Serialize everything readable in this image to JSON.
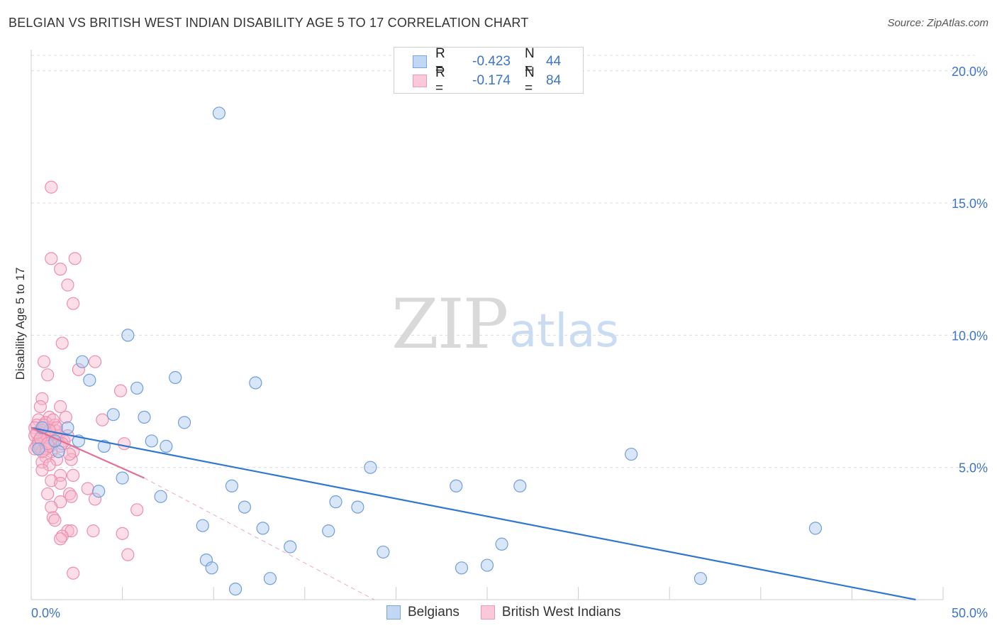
{
  "header": {
    "title": "BELGIAN VS BRITISH WEST INDIAN DISABILITY AGE 5 TO 17 CORRELATION CHART",
    "source": "Source: ZipAtlas.com"
  },
  "watermark": {
    "zip": "ZIP",
    "atlas": "atlas"
  },
  "legend": {
    "rows": [
      {
        "r_label": "R =",
        "r_value": "-0.423",
        "n_label": "N =",
        "n_value": "44"
      },
      {
        "r_label": "R =",
        "r_value": "-0.174",
        "n_label": "N =",
        "n_value": "84"
      }
    ],
    "bottom": [
      "Belgians",
      "British West Indians"
    ]
  },
  "colors": {
    "blue_fill": "#a9c8ee",
    "blue_stroke": "#6f9fdc",
    "blue_line": "#2f77d0",
    "pink_fill": "#f6b6cb",
    "pink_stroke": "#ec8fae",
    "pink_line": "#e0709a",
    "grid": "#dcdcdc",
    "axis_text": "#3d74c8"
  },
  "chart_data": {
    "type": "scatter",
    "title": "BELGIAN VS BRITISH WEST INDIAN DISABILITY AGE 5 TO 17 CORRELATION CHART",
    "xlabel": "",
    "ylabel": "Disability Age 5 to 17",
    "xlim": [
      0,
      50
    ],
    "ylim": [
      0,
      20.8
    ],
    "x_tick_labels": [
      "0.0%",
      "50.0%"
    ],
    "y_ticks": [
      5,
      10,
      15,
      20
    ],
    "y_tick_labels": [
      "5.0%",
      "10.0%",
      "15.0%",
      "20.0%"
    ],
    "series": [
      {
        "name": "Belgians",
        "r": -0.423,
        "n": 44,
        "trend": {
          "x": [
            0.0,
            48.5
          ],
          "y": [
            6.5,
            0.0
          ]
        },
        "points": [
          [
            10.3,
            18.4
          ],
          [
            5.3,
            10.0
          ],
          [
            2.8,
            9.0
          ],
          [
            3.2,
            8.3
          ],
          [
            5.8,
            8.0
          ],
          [
            7.9,
            8.4
          ],
          [
            12.3,
            8.2
          ],
          [
            4.5,
            7.0
          ],
          [
            6.2,
            6.9
          ],
          [
            8.4,
            6.7
          ],
          [
            2.0,
            6.5
          ],
          [
            2.6,
            6.0
          ],
          [
            4.0,
            5.8
          ],
          [
            6.6,
            6.0
          ],
          [
            7.4,
            5.8
          ],
          [
            0.4,
            5.7
          ],
          [
            1.5,
            5.6
          ],
          [
            0.6,
            6.5
          ],
          [
            5.0,
            4.6
          ],
          [
            3.7,
            4.1
          ],
          [
            7.1,
            3.9
          ],
          [
            11.0,
            4.3
          ],
          [
            9.4,
            2.8
          ],
          [
            11.7,
            3.5
          ],
          [
            12.7,
            2.7
          ],
          [
            14.2,
            2.0
          ],
          [
            9.6,
            1.5
          ],
          [
            9.9,
            1.2
          ],
          [
            11.2,
            0.4
          ],
          [
            13.1,
            0.8
          ],
          [
            16.7,
            3.7
          ],
          [
            17.9,
            3.5
          ],
          [
            18.6,
            5.0
          ],
          [
            16.3,
            2.6
          ],
          [
            19.3,
            1.8
          ],
          [
            23.3,
            4.3
          ],
          [
            23.6,
            1.2
          ],
          [
            25.0,
            1.3
          ],
          [
            25.8,
            2.1
          ],
          [
            26.8,
            4.3
          ],
          [
            32.9,
            5.5
          ],
          [
            36.7,
            0.8
          ],
          [
            43.0,
            2.7
          ],
          [
            1.3,
            6.0
          ]
        ]
      },
      {
        "name": "British West Indians",
        "r": -0.174,
        "n": 84,
        "trend": {
          "x": [
            0.0,
            6.2
          ],
          "y": [
            6.5,
            4.6
          ]
        },
        "trend_dashed": {
          "x": [
            6.2,
            18.8
          ],
          "y": [
            4.6,
            0.0
          ]
        },
        "points": [
          [
            1.1,
            15.6
          ],
          [
            1.1,
            12.9
          ],
          [
            2.4,
            12.9
          ],
          [
            1.6,
            12.5
          ],
          [
            2.0,
            11.9
          ],
          [
            2.3,
            11.2
          ],
          [
            1.7,
            9.7
          ],
          [
            0.7,
            9.0
          ],
          [
            3.5,
            9.0
          ],
          [
            0.9,
            8.5
          ],
          [
            2.6,
            8.7
          ],
          [
            4.9,
            7.9
          ],
          [
            0.6,
            7.6
          ],
          [
            1.6,
            7.3
          ],
          [
            0.5,
            7.3
          ],
          [
            1.0,
            6.9
          ],
          [
            1.9,
            6.9
          ],
          [
            0.4,
            6.8
          ],
          [
            3.9,
            6.8
          ],
          [
            0.8,
            6.7
          ],
          [
            0.3,
            6.6
          ],
          [
            1.3,
            6.6
          ],
          [
            0.2,
            6.5
          ],
          [
            0.6,
            6.4
          ],
          [
            1.0,
            6.3
          ],
          [
            1.5,
            6.2
          ],
          [
            0.2,
            6.2
          ],
          [
            0.7,
            6.1
          ],
          [
            1.2,
            6.0
          ],
          [
            0.4,
            6.0
          ],
          [
            0.9,
            5.9
          ],
          [
            0.3,
            5.8
          ],
          [
            1.6,
            5.8
          ],
          [
            0.5,
            5.7
          ],
          [
            1.1,
            5.6
          ],
          [
            2.3,
            5.6
          ],
          [
            0.8,
            5.4
          ],
          [
            1.4,
            5.3
          ],
          [
            2.2,
            5.3
          ],
          [
            0.6,
            5.2
          ],
          [
            1.0,
            5.1
          ],
          [
            5.1,
            5.9
          ],
          [
            0.6,
            4.9
          ],
          [
            1.6,
            4.7
          ],
          [
            2.3,
            4.7
          ],
          [
            1.1,
            4.5
          ],
          [
            1.6,
            4.4
          ],
          [
            3.1,
            4.2
          ],
          [
            0.9,
            4.0
          ],
          [
            2.1,
            4.0
          ],
          [
            2.2,
            3.9
          ],
          [
            3.5,
            3.8
          ],
          [
            1.6,
            3.7
          ],
          [
            1.1,
            3.5
          ],
          [
            5.8,
            3.4
          ],
          [
            1.2,
            3.1
          ],
          [
            1.3,
            3.0
          ],
          [
            2.0,
            2.6
          ],
          [
            2.2,
            2.6
          ],
          [
            3.4,
            2.6
          ],
          [
            5.0,
            2.5
          ],
          [
            1.7,
            2.4
          ],
          [
            1.6,
            2.3
          ],
          [
            5.3,
            1.7
          ],
          [
            2.3,
            1.0
          ],
          [
            0.9,
            6.1
          ],
          [
            1.3,
            6.4
          ],
          [
            0.4,
            5.9
          ],
          [
            0.8,
            5.7
          ],
          [
            1.5,
            6.2
          ],
          [
            0.3,
            6.3
          ],
          [
            1.0,
            5.8
          ],
          [
            0.5,
            6.1
          ],
          [
            1.8,
            6.0
          ],
          [
            0.7,
            6.6
          ],
          [
            2.1,
            5.5
          ],
          [
            1.2,
            6.8
          ],
          [
            0.6,
            5.6
          ],
          [
            1.4,
            6.5
          ],
          [
            0.9,
            5.9
          ],
          [
            2.0,
            6.2
          ],
          [
            0.2,
            5.7
          ],
          [
            1.7,
            5.9
          ],
          [
            1.0,
            6.4
          ]
        ]
      }
    ]
  }
}
